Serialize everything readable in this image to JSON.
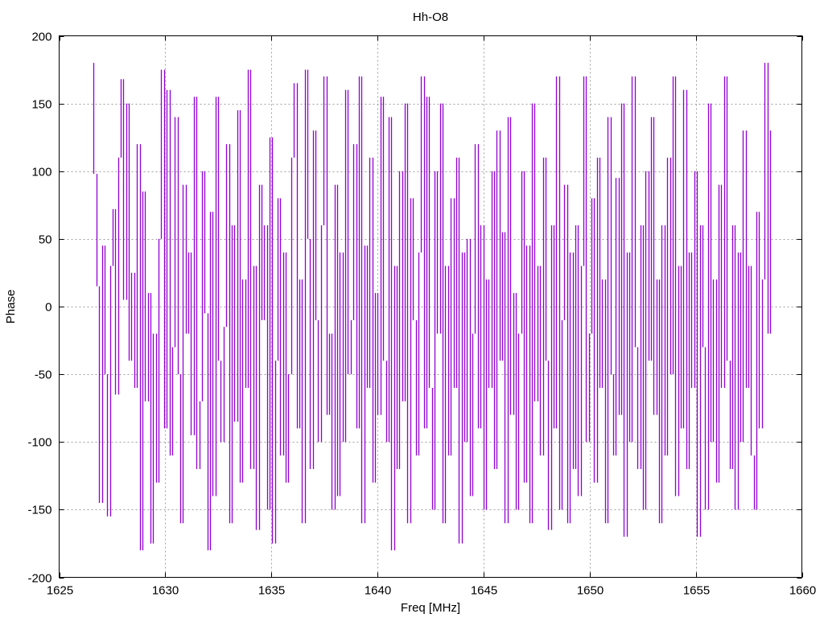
{
  "chart_data": {
    "type": "line",
    "title": "Hh-O8",
    "xlabel": "Freq [MHz]",
    "ylabel": "Phase",
    "xlim": [
      1625,
      1660
    ],
    "ylim": [
      -200,
      200
    ],
    "xticks": [
      1625,
      1630,
      1635,
      1640,
      1645,
      1650,
      1655,
      1660
    ],
    "yticks": [
      -200,
      -150,
      -100,
      -50,
      0,
      50,
      100,
      150,
      200
    ],
    "xtick_labels": [
      "1625",
      "1630",
      "1635",
      "1640",
      "1645",
      "1650",
      "1655",
      "1660"
    ],
    "ytick_labels": [
      "-200",
      "-150",
      "-100",
      "-50",
      "0",
      "50",
      "100",
      "150",
      "200"
    ],
    "grid": true,
    "legend": "none",
    "series": [
      {
        "name": "Hh-O8",
        "color": "#9400d3",
        "x_start": 1626.5,
        "x_end": 1658.5,
        "values": [
          180,
          98,
          15,
          -145,
          45,
          -50,
          -155,
          30,
          72,
          -65,
          110,
          168,
          5,
          150,
          -40,
          25,
          -60,
          120,
          -180,
          85,
          -70,
          10,
          -175,
          -20,
          -130,
          50,
          175,
          -90,
          160,
          -110,
          -30,
          140,
          -50,
          -160,
          90,
          -20,
          40,
          -95,
          155,
          -120,
          -70,
          100,
          -5,
          -180,
          70,
          -140,
          155,
          -40,
          -100,
          -15,
          120,
          -160,
          60,
          -85,
          145,
          -130,
          20,
          -60,
          175,
          -120,
          30,
          -165,
          90,
          -10,
          60,
          -150,
          125,
          -175,
          -40,
          80,
          -110,
          40,
          -130,
          -50,
          110,
          165,
          -90,
          20,
          -160,
          175,
          50,
          -120,
          130,
          -10,
          -100,
          60,
          170,
          -80,
          -20,
          -150,
          90,
          -140,
          40,
          -100,
          160,
          -50,
          -10,
          120,
          -90,
          170,
          -160,
          45,
          -60,
          110,
          -130,
          10,
          -80,
          155,
          -40,
          -100,
          140,
          -180,
          30,
          -120,
          100,
          -70,
          150,
          -160,
          80,
          -10,
          -110,
          40,
          170,
          -90,
          155,
          -60,
          -150,
          100,
          -20,
          150,
          -160,
          30,
          -110,
          80,
          -60,
          110,
          -175,
          40,
          -100,
          50,
          -140,
          -20,
          120,
          -90,
          60,
          -150,
          20,
          -60,
          100,
          -120,
          130,
          -40,
          55,
          -160,
          140,
          -80,
          10,
          -150,
          -20,
          100,
          -130,
          45,
          -160,
          150,
          -70,
          30,
          -110,
          110,
          -40,
          -165,
          60,
          -90,
          170,
          -150,
          -10,
          90,
          -160,
          40,
          -120,
          60,
          -140,
          30,
          170,
          -100,
          -20,
          80,
          -130,
          110,
          -60,
          20,
          -160,
          140,
          -50,
          -110,
          95,
          -80,
          150,
          -170,
          40,
          -100,
          170,
          -30,
          -120,
          60,
          -150,
          100,
          -40,
          140,
          -80,
          20,
          -160,
          60,
          -110,
          110,
          -50,
          170,
          -140,
          30,
          -90,
          160,
          -120,
          40,
          -60,
          100,
          -170,
          60,
          -30,
          -150,
          150,
          -100,
          20,
          -130,
          90,
          -60,
          170,
          -40,
          -120,
          60,
          -150,
          40,
          -100,
          130,
          -60,
          30,
          -110,
          -150,
          70,
          -90,
          20,
          180,
          -20,
          130
        ]
      }
    ]
  }
}
